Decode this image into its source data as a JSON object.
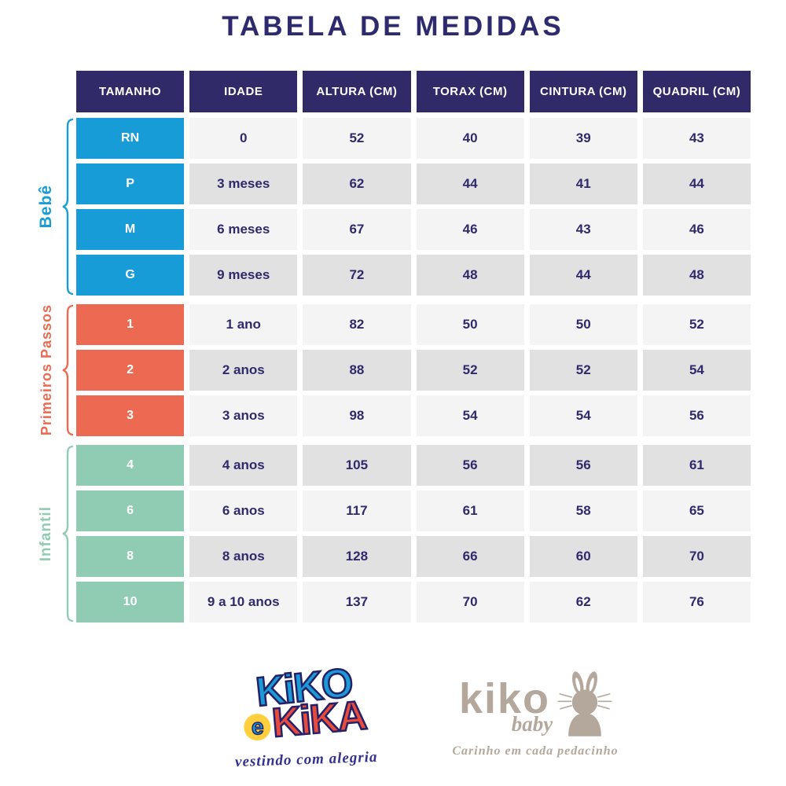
{
  "chart_data": {
    "type": "table",
    "title": "TABELA DE MEDIDAS",
    "columns": [
      "TAMANHO",
      "IDADE",
      "ALTURA (CM)",
      "TORAX (CM)",
      "CINTURA (CM)",
      "QUADRIL (CM)"
    ],
    "groups": [
      {
        "label": "Bebê",
        "color": "#189cd8",
        "rows": [
          [
            "RN",
            "0",
            52,
            40,
            39,
            43
          ],
          [
            "P",
            "3 meses",
            62,
            44,
            41,
            44
          ],
          [
            "M",
            "6 meses",
            67,
            46,
            43,
            46
          ],
          [
            "G",
            "9 meses",
            72,
            48,
            44,
            48
          ]
        ]
      },
      {
        "label": "Primeiros Passos",
        "color": "#ec6a52",
        "rows": [
          [
            "1",
            "1 ano",
            82,
            50,
            50,
            52
          ],
          [
            "2",
            "2 anos",
            88,
            52,
            52,
            54
          ],
          [
            "3",
            "3 anos",
            98,
            54,
            54,
            56
          ]
        ]
      },
      {
        "label": "Infantil",
        "color": "#90ccb4",
        "rows": [
          [
            "4",
            "4 anos",
            105,
            56,
            56,
            61
          ],
          [
            "6",
            "6 anos",
            117,
            61,
            58,
            65
          ],
          [
            "8",
            "8 anos",
            128,
            66,
            60,
            70
          ],
          [
            "10",
            "9 a 10 anos",
            137,
            70,
            62,
            76
          ]
        ]
      }
    ],
    "layout": {
      "grid": false,
      "row_shading": "alternating",
      "group_labels_position": "left"
    }
  },
  "branding": {
    "kiko_e_kika": {
      "word1": "KiKO",
      "connector": "e",
      "word2": "KiKA",
      "tagline": "vestindo com alegria"
    },
    "kiko_baby": {
      "name": "kiko",
      "sub": "baby",
      "tagline": "Carinho em cada pedacinho"
    }
  },
  "colors": {
    "header_bg": "#312a69",
    "text_navy": "#2f2a6b",
    "row_light": "#f4f4f4",
    "row_dark": "#e1e1e1",
    "bebe_blue": "#189cd8",
    "primeiros_passos_salmon": "#ec6a52",
    "infantil_mint": "#90ccb4",
    "logo_taupe": "#b3a89b",
    "logo_kiko_blue": "#1b9ad6",
    "logo_kika_red": "#e84b3c",
    "logo_e_yellow": "#ffcf3e"
  }
}
